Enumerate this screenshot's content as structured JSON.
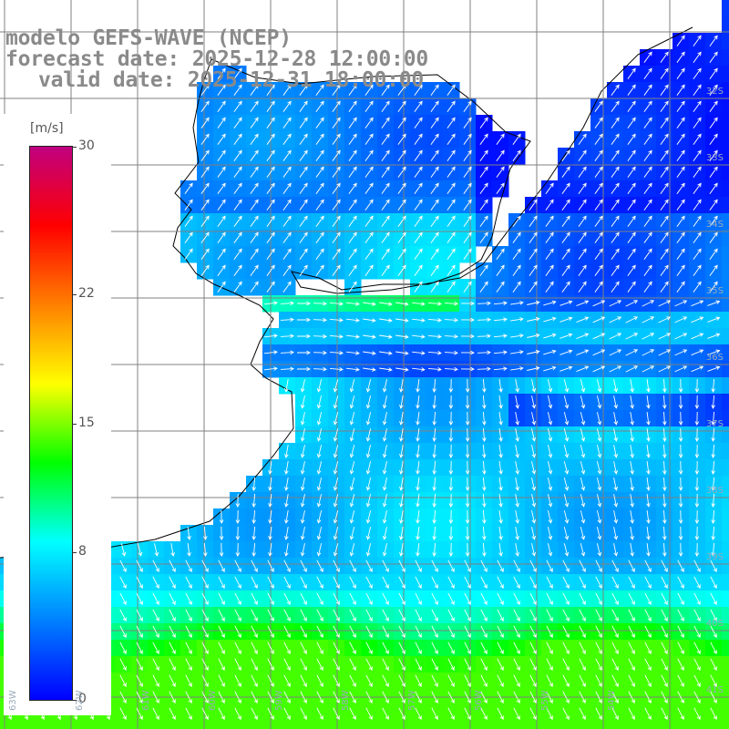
{
  "title": {
    "line1": "modelo GEFS-WAVE (NCEP)",
    "line2": "forecast date: 2025-12-28 12:00:00",
    "line3": "valid date: 2025-12-31 18:00:00"
  },
  "colorbar": {
    "unit": "[m/s]",
    "ticks": [
      "30",
      "22",
      "15",
      "8",
      "0"
    ],
    "tick_values": [
      30,
      22,
      15,
      8,
      0
    ],
    "range": [
      0,
      30
    ],
    "colors": [
      "#0000ff",
      "#0080ff",
      "#00ffff",
      "#00ff00",
      "#ffff00",
      "#ff8000",
      "#ff0000",
      "#c00080"
    ]
  },
  "map": {
    "region": "South America / South Atlantic",
    "field": "wind speed",
    "vector_field": "wind direction arrows",
    "land_color": "#ffffff",
    "coast_color": "#000000",
    "grid_color": "#808080",
    "lat_labels": [
      "32S",
      "33S",
      "34S",
      "35S",
      "36S",
      "37S",
      "38S",
      "39S",
      "40S",
      "41S"
    ],
    "lon_labels": [
      "63W",
      "62W",
      "61W",
      "60W",
      "59W",
      "58W",
      "57W",
      "56W",
      "55W",
      "54W"
    ]
  }
}
